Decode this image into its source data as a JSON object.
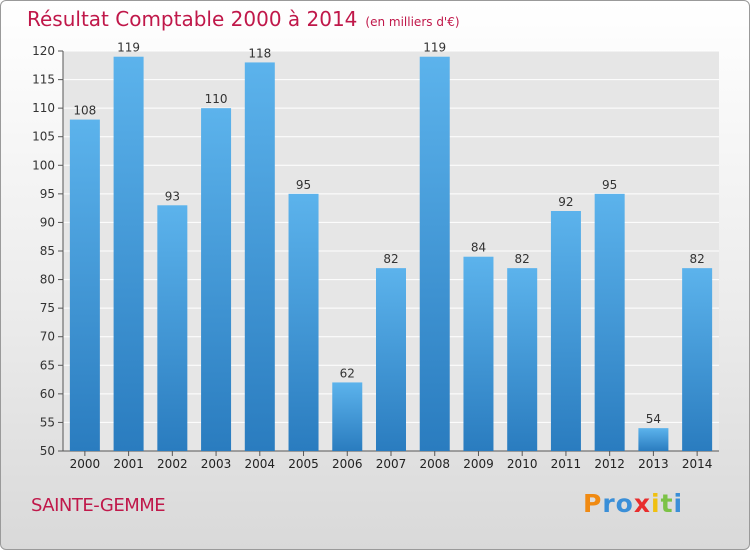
{
  "chart_data": {
    "type": "bar",
    "title": "Résultat Comptable 2000 à 2014",
    "subtitle": "(en milliers d'€)",
    "categories": [
      "2000",
      "2001",
      "2002",
      "2003",
      "2004",
      "2005",
      "2006",
      "2007",
      "2008",
      "2009",
      "2010",
      "2011",
      "2012",
      "2013",
      "2014"
    ],
    "values": [
      108,
      119,
      93,
      110,
      118,
      95,
      62,
      82,
      119,
      84,
      82,
      92,
      95,
      54,
      82
    ],
    "ylim": [
      50,
      120
    ],
    "yticks": [
      50,
      55,
      60,
      65,
      70,
      75,
      80,
      85,
      90,
      95,
      100,
      105,
      110,
      115,
      120
    ],
    "xlabel": "",
    "ylabel": "",
    "grid": true,
    "bar_color_top": "#5cb3ec",
    "bar_color_bottom": "#2a7cbf"
  },
  "commune": "SAINTE-GEMME",
  "logo": {
    "letters": [
      "P",
      "r",
      "o",
      "x",
      "i",
      "t",
      "i"
    ],
    "colors": [
      "#f08a12",
      "#3a8fd8",
      "#3a8fd8",
      "#e82d2d",
      "#f0c010",
      "#7cc246",
      "#3a8fd8"
    ]
  }
}
